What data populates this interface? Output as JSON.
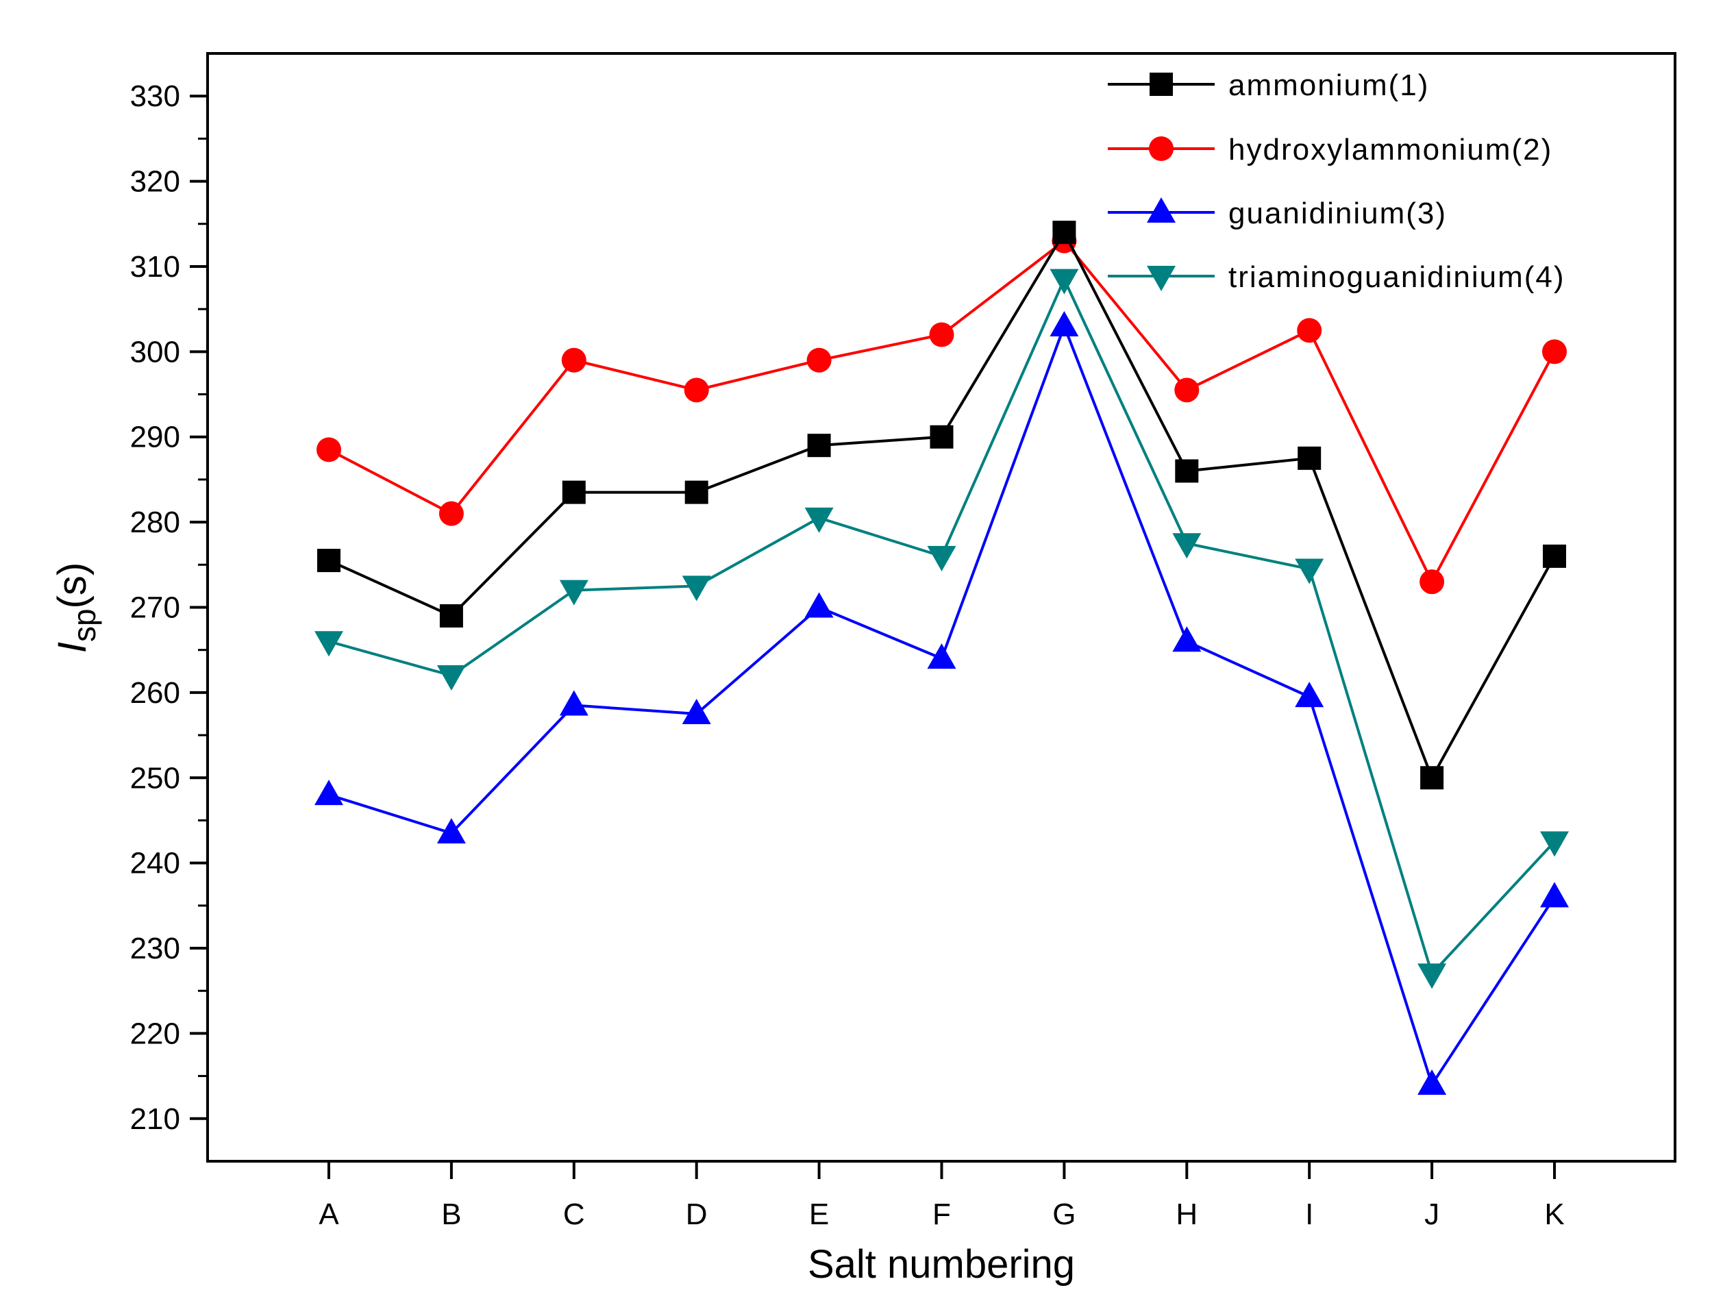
{
  "chart_data": {
    "type": "line",
    "xlabel": "Salt numbering",
    "ylabel": {
      "main": "I",
      "sub": "sp",
      "suffix": "(s)"
    },
    "categories": [
      "A",
      "B",
      "C",
      "D",
      "E",
      "F",
      "G",
      "H",
      "I",
      "J",
      "K"
    ],
    "ylim": [
      205,
      335
    ],
    "yticks": [
      210,
      220,
      230,
      240,
      250,
      260,
      270,
      280,
      290,
      300,
      310,
      320,
      330
    ],
    "grid": false,
    "legend_position": "top-right",
    "series": [
      {
        "name": "ammonium(1)",
        "color": "#000000",
        "marker": "square",
        "values": [
          275.5,
          269,
          283.5,
          283.5,
          289,
          290,
          314,
          286,
          287.5,
          250,
          276
        ]
      },
      {
        "name": "hydroxylammonium(2)",
        "color": "#ff0000",
        "marker": "circle",
        "values": [
          288.5,
          281,
          299,
          295.5,
          299,
          302,
          313,
          295.5,
          302.5,
          273,
          300
        ]
      },
      {
        "name": "guanidinium(3)",
        "color": "#0000ff",
        "marker": "triangle-up",
        "values": [
          248,
          243.5,
          258.5,
          257.5,
          270,
          264,
          303,
          266,
          259.5,
          214,
          236
        ]
      },
      {
        "name": "triaminoguanidinium(4)",
        "color": "#008080",
        "marker": "triangle-down",
        "values": [
          266,
          262,
          272,
          272.5,
          280.5,
          276,
          308.5,
          277.5,
          274.5,
          227,
          242.5
        ]
      }
    ]
  }
}
